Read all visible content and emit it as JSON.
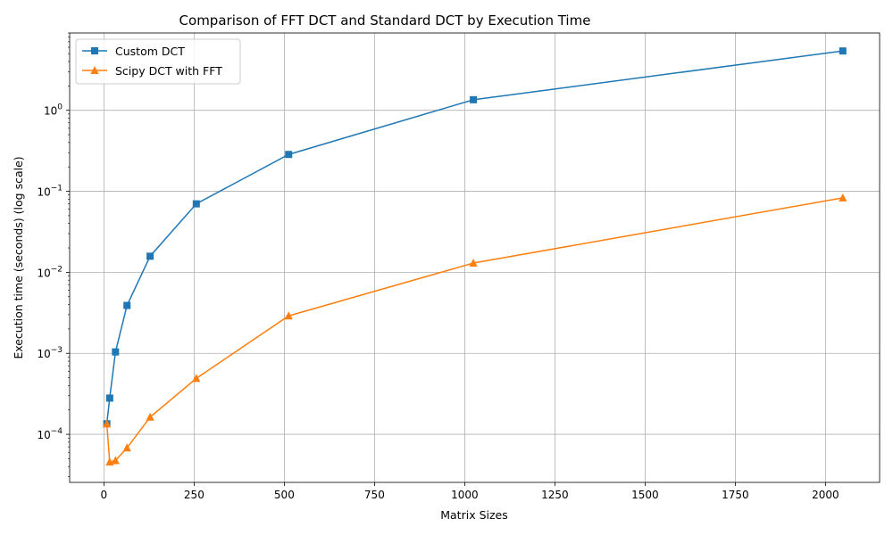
{
  "chart_data": {
    "type": "line",
    "title": "Comparison of FFT DCT and Standard DCT by Execution Time",
    "xlabel": "Matrix Sizes",
    "ylabel": "Execution time (seconds) (log scale)",
    "yscale": "log",
    "xlim": [
      -95,
      2150
    ],
    "ylim": [
      2.55e-05,
      9.0
    ],
    "xticks": [
      0,
      250,
      500,
      750,
      1000,
      1250,
      1500,
      1750,
      2000
    ],
    "yticks": [
      {
        "value": 0.0001,
        "base": "10",
        "exp": "−4"
      },
      {
        "value": 0.001,
        "base": "10",
        "exp": "−3"
      },
      {
        "value": 0.01,
        "base": "10",
        "exp": "−2"
      },
      {
        "value": 0.1,
        "base": "10",
        "exp": "−1"
      },
      {
        "value": 1,
        "base": "10",
        "exp": "0"
      }
    ],
    "grid": true,
    "legend_position": "top-left",
    "x": [
      8,
      16,
      32,
      64,
      128,
      256,
      512,
      1024,
      2048
    ],
    "series": [
      {
        "name": "Custom DCT",
        "color": "#1f77b4",
        "marker": "square",
        "values": [
          0.000135,
          0.00028,
          0.00104,
          0.0039,
          0.0158,
          0.07,
          0.285,
          1.35,
          5.4
        ]
      },
      {
        "name": "Scipy DCT with FFT",
        "color": "#ff7f0e",
        "marker": "triangle",
        "values": [
          0.000135,
          4.55e-05,
          4.75e-05,
          6.8e-05,
          0.000163,
          0.00049,
          0.0029,
          0.013,
          0.083
        ]
      }
    ]
  }
}
